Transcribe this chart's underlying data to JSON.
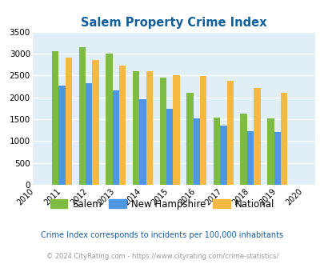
{
  "title": "Salem Property Crime Index",
  "all_years": [
    2010,
    2011,
    2012,
    2013,
    2014,
    2015,
    2016,
    2017,
    2018,
    2019,
    2020
  ],
  "bar_years": [
    2011,
    2012,
    2013,
    2014,
    2015,
    2016,
    2017,
    2018,
    2019
  ],
  "salem": [
    3060,
    3140,
    3000,
    2600,
    2450,
    2100,
    1540,
    1620,
    1510
  ],
  "new_hampshire": [
    2270,
    2330,
    2160,
    1960,
    1740,
    1510,
    1360,
    1230,
    1210
  ],
  "national": [
    2910,
    2860,
    2720,
    2600,
    2510,
    2490,
    2380,
    2210,
    2110
  ],
  "salem_color": "#7dbb42",
  "nh_color": "#4d96e0",
  "national_color": "#f5b942",
  "bg_color": "#e0eff5",
  "title_color": "#1060a0",
  "ylim": [
    0,
    3500
  ],
  "yticks": [
    0,
    500,
    1000,
    1500,
    2000,
    2500,
    3000,
    3500
  ],
  "footnote1": "Crime Index corresponds to incidents per 100,000 inhabitants",
  "footnote2": "© 2024 CityRating.com - https://www.cityrating.com/crime-statistics/",
  "legend_labels": [
    "Salem",
    "New Hampshire",
    "National"
  ],
  "bar_width": 0.25
}
